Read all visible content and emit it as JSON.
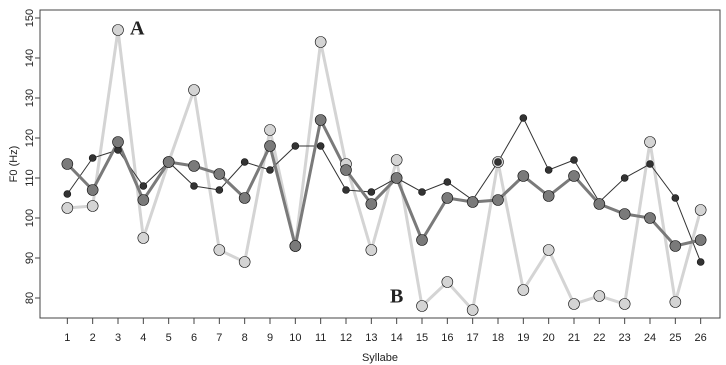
{
  "chart_data": {
    "type": "line",
    "x_label": "Syllabe",
    "y_label": "F0 (Hz)",
    "annotations": [
      "A",
      "B"
    ],
    "x": [
      1,
      2,
      3,
      4,
      5,
      6,
      7,
      8,
      9,
      10,
      11,
      12,
      13,
      14,
      15,
      16,
      17,
      18,
      19,
      20,
      21,
      22,
      23,
      24,
      25,
      26
    ],
    "xlim": [
      0,
      27
    ],
    "xticks": [
      1,
      2,
      3,
      4,
      5,
      6,
      7,
      8,
      9,
      10,
      11,
      12,
      13,
      14,
      15,
      16,
      17,
      18,
      19,
      20,
      21,
      22,
      23,
      24,
      25,
      26
    ],
    "ylim": [
      75,
      152
    ],
    "yticks": [
      80,
      90,
      100,
      110,
      120,
      130,
      140,
      150
    ],
    "series": [
      {
        "color": "#d4d4d4",
        "values": [
          102.5,
          103,
          147,
          95,
          114,
          132,
          92,
          89,
          122,
          93,
          144,
          113.5,
          92,
          114.5,
          78,
          84,
          77,
          114,
          82,
          92,
          78.5,
          80.5,
          78.5,
          119,
          79,
          102
        ]
      },
      {
        "color": "#333333",
        "values": [
          106,
          115,
          117,
          108,
          114,
          108,
          107,
          114,
          112,
          118,
          118,
          107,
          106.5,
          110,
          106.5,
          109,
          104.5,
          114,
          125,
          112,
          114.5,
          104,
          110,
          113.5,
          105,
          89
        ]
      },
      {
        "color": "#7a7a7a",
        "values": [
          113.5,
          107,
          119,
          104.5,
          114,
          113,
          111,
          105,
          118,
          93,
          124.5,
          112,
          103.5,
          110,
          94.5,
          105,
          104,
          104.5,
          110.5,
          105.5,
          110.5,
          103.5,
          101,
          100,
          93,
          94.5
        ]
      }
    ]
  }
}
